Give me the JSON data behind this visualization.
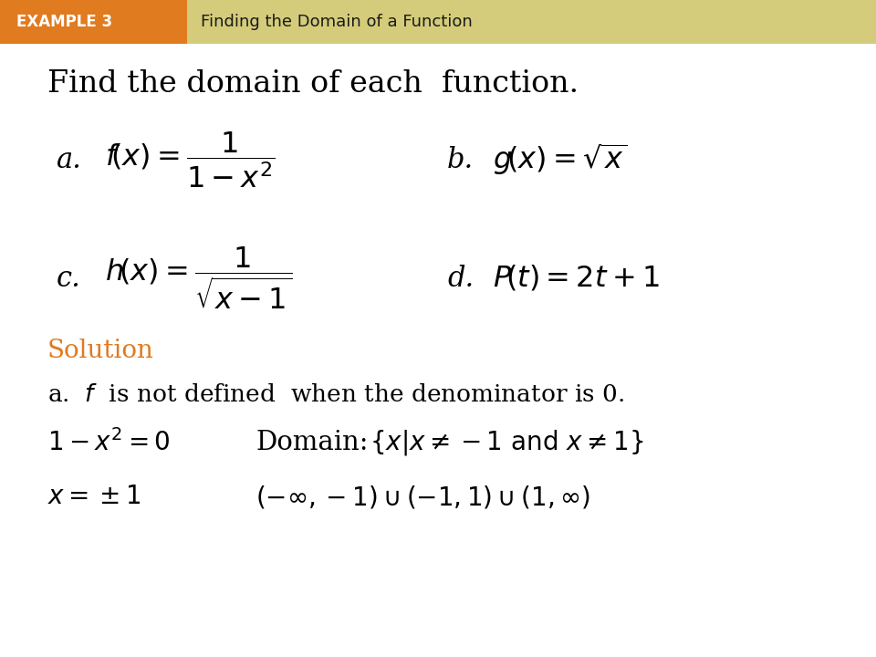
{
  "bg_color": "#ffffff",
  "header_orange_color": "#E07B20",
  "header_yellow_color": "#D4CC7A",
  "header_text_example": "EXAMPLE 3",
  "header_text_title": "Finding the Domain of a Function",
  "main_title": "Find the domain of each  function.",
  "solution_color": "#E07B20",
  "solution_text": "Solution",
  "formula_a_label": "a.",
  "formula_b_label": "b.",
  "formula_c_label": "c.",
  "formula_d_label": "d."
}
